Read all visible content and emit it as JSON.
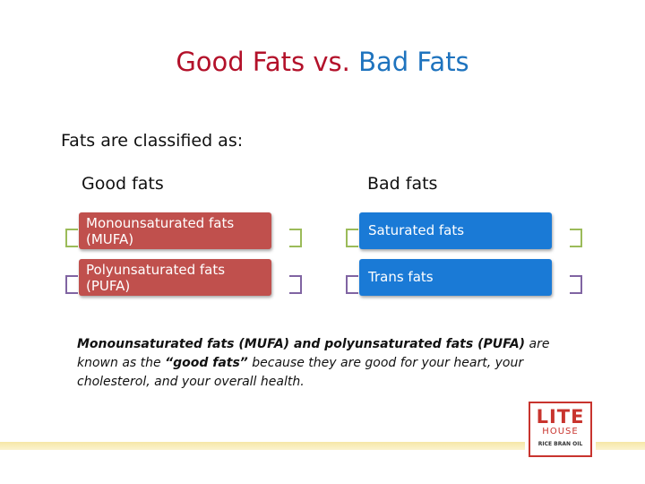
{
  "title": {
    "good": "Good Fats",
    "vs": " vs. ",
    "bad": "Bad Fats"
  },
  "intro": "Fats are classified as:",
  "columns": {
    "good": {
      "heading": "Good fats",
      "items": [
        {
          "line1": "Monounsaturated fats",
          "line2": "(MUFA)"
        },
        {
          "line1": "Polyunsaturated fats",
          "line2": "(PUFA)"
        }
      ]
    },
    "bad": {
      "heading": "Bad fats",
      "items": [
        "Saturated fats",
        "Trans fats"
      ]
    }
  },
  "note": {
    "bold1": "Monounsaturated fats (MUFA) and polyunsaturated fats (PUFA)",
    "text1": " are known as the ",
    "bold2": "“good fats”",
    "text2": " because they are good for your heart, your cholesterol, and your overall health."
  },
  "logo": {
    "line1": "LITE",
    "line2": "HOUSE",
    "line3": "RICE BRAN OIL"
  },
  "colors": {
    "title_good": "#b3112a",
    "title_bad": "#1e73be",
    "box_good": "#c0504d",
    "box_bad": "#1a7ad6",
    "bracket_green": "#9bbb59",
    "bracket_purple": "#8064a2"
  }
}
